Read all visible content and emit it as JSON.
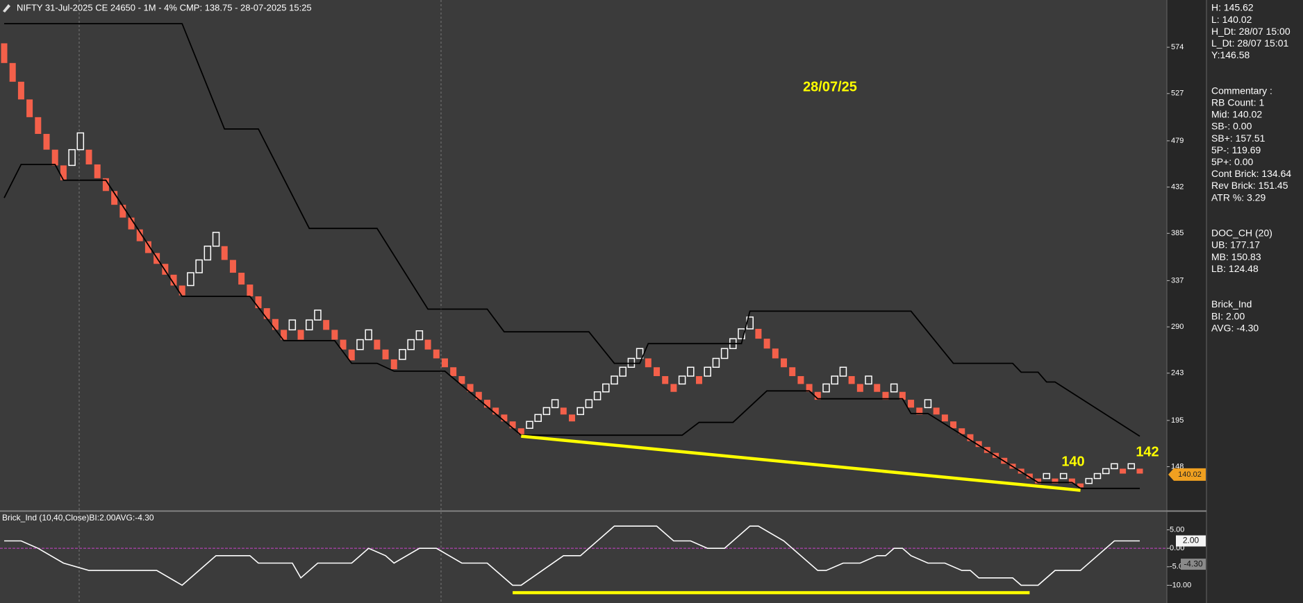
{
  "chart_data": [
    {
      "type": "renko",
      "title": "NIFTY 31-Jul-2025 CE 24650 - 1M - 4% CMP: 138.75 - 28-07-2025 15:25",
      "open": [
        578,
        558,
        539,
        521,
        503,
        486,
        470,
        454,
        454,
        470,
        470,
        455,
        441,
        428,
        414,
        401,
        389,
        377,
        365,
        354,
        343,
        332,
        332,
        345,
        358,
        372,
        372,
        358,
        345,
        333,
        321,
        309,
        298,
        287,
        287,
        287,
        287,
        297,
        297,
        287,
        277,
        267,
        267,
        277,
        277,
        267,
        257,
        257,
        267,
        277,
        277,
        267,
        258,
        249,
        240,
        232,
        224,
        216,
        208,
        201,
        194,
        187,
        187,
        194,
        201,
        208,
        208,
        201,
        201,
        208,
        216,
        224,
        232,
        240,
        249,
        258,
        258,
        249,
        240,
        232,
        232,
        240,
        240,
        240,
        249,
        258,
        268,
        278,
        288,
        288,
        278,
        268,
        258,
        249,
        240,
        232,
        224,
        224,
        232,
        240,
        240,
        232,
        232,
        232,
        224,
        224,
        224,
        216,
        208,
        208,
        208,
        201,
        194,
        187,
        181,
        174,
        168,
        162,
        157,
        151,
        146,
        141,
        136,
        136,
        136,
        136,
        136,
        131,
        131,
        136,
        141,
        146,
        146,
        146,
        146
      ],
      "close": [
        558,
        539,
        521,
        503,
        486,
        470,
        454,
        439,
        470,
        487,
        455,
        441,
        428,
        414,
        401,
        389,
        377,
        365,
        354,
        343,
        332,
        322,
        345,
        358,
        372,
        386,
        358,
        345,
        333,
        321,
        309,
        298,
        287,
        277,
        297,
        277,
        297,
        307,
        287,
        277,
        267,
        256,
        277,
        287,
        267,
        257,
        247,
        267,
        277,
        286,
        267,
        258,
        249,
        240,
        232,
        224,
        216,
        208,
        201,
        194,
        187,
        181,
        194,
        201,
        208,
        216,
        201,
        194,
        208,
        216,
        224,
        232,
        240,
        249,
        258,
        268,
        249,
        240,
        232,
        224,
        240,
        249,
        232,
        249,
        258,
        268,
        278,
        288,
        300,
        278,
        268,
        258,
        249,
        240,
        232,
        224,
        216,
        232,
        240,
        249,
        232,
        224,
        240,
        224,
        216,
        232,
        216,
        208,
        201,
        216,
        201,
        194,
        187,
        181,
        174,
        168,
        162,
        157,
        151,
        146,
        141,
        136,
        131,
        141,
        131,
        141,
        131,
        127,
        136,
        141,
        146,
        151,
        141,
        151,
        141
      ],
      "up_color": "#ffffff",
      "down_color": "#f4604a",
      "overlays": [
        {
          "color": "#000000",
          "x": [
            0,
            21,
            26,
            30,
            36,
            44,
            50,
            57,
            59,
            69,
            72,
            75,
            76,
            87,
            88,
            107,
            112,
            119,
            120,
            122,
            123,
            124,
            134
          ],
          "values": [
            598,
            598,
            491,
            491,
            390,
            390,
            308,
            308,
            285,
            285,
            253,
            253,
            273,
            273,
            306,
            306,
            253,
            253,
            244,
            244,
            234,
            234,
            179
          ]
        },
        {
          "color": "#000000",
          "x": [
            0,
            2,
            6,
            7,
            12,
            21,
            29,
            33,
            39,
            41,
            44,
            46,
            52,
            61,
            80,
            82,
            86,
            90,
            95,
            96,
            106,
            107,
            109,
            122,
            126,
            127,
            134
          ],
          "values": [
            421,
            455,
            455,
            439,
            439,
            321,
            321,
            276,
            276,
            253,
            253,
            245,
            245,
            180,
            180,
            193,
            193,
            225,
            225,
            217,
            217,
            202,
            202,
            132,
            132,
            126,
            126
          ]
        }
      ],
      "trendline": {
        "color": "#ffff00",
        "x": [
          61,
          127
        ],
        "values": [
          179,
          124
        ]
      },
      "annotations": [
        "28/07/25",
        "140",
        "142"
      ],
      "annotation_color": "#ffff00",
      "price_tag": {
        "value": 140.02,
        "label": "140.02"
      },
      "price_tag_color": "#f0a020",
      "ylim": [
        104,
        622
      ],
      "yticks": [
        574,
        527,
        479,
        432,
        385,
        337,
        290,
        243,
        195,
        148
      ],
      "grid": false
    },
    {
      "type": "line",
      "title": "Brick_Ind (10,40,Close)BI:2.00AVG:-4.30",
      "x": [
        0,
        2,
        4,
        7,
        10,
        18,
        21,
        25,
        29,
        30,
        34,
        35,
        37,
        41,
        43,
        45,
        46,
        49,
        51,
        54,
        57,
        60,
        61,
        66,
        68,
        72,
        77,
        79,
        81,
        83,
        85,
        88,
        89,
        92,
        93,
        96,
        97,
        99,
        101,
        103,
        104,
        105,
        106,
        107,
        109,
        111,
        113,
        114,
        115,
        119,
        120,
        122,
        124,
        125,
        127,
        129,
        131,
        134
      ],
      "values": [
        2,
        2,
        0,
        -4,
        -6,
        -6,
        -10,
        -2,
        -2,
        -4,
        -4,
        -8,
        -4,
        -4,
        0,
        -2,
        -4,
        0,
        0,
        -4,
        -4,
        -10,
        -10,
        -2,
        -2,
        6,
        6,
        2,
        2,
        0,
        0,
        6,
        6,
        2,
        0,
        -6,
        -6,
        -4,
        -4,
        -2,
        -2,
        0,
        0,
        -2,
        -4,
        -4,
        -6,
        -6,
        -8,
        -8,
        -10,
        -10,
        -6,
        -6,
        -6,
        -2,
        2,
        2
      ],
      "color": "#ffffff",
      "reference_line": {
        "value": 0,
        "color": "#cc44cc"
      },
      "band_line": {
        "color": "#ffff00",
        "x": [
          60,
          121
        ],
        "values": [
          -12,
          -12
        ]
      },
      "tags": [
        {
          "value": 2,
          "label": "2.00"
        },
        {
          "value": -4.3,
          "label": "-4.30"
        }
      ],
      "ylim": [
        -14.8,
        9.8
      ],
      "yticks": [
        {
          "value": 5,
          "label": "5.00"
        },
        {
          "value": 0,
          "label": "0.00"
        },
        {
          "value": -5,
          "label": "-5.00"
        },
        {
          "value": -10,
          "label": "-10.00"
        }
      ],
      "grid": false
    }
  ],
  "info_panel": [
    [
      "H: 145.62",
      "L: 140.02",
      "H_Dt: 28/07 15:00",
      "L_Dt: 28/07 15:01",
      "Y:146.58"
    ],
    [
      "Commentary :",
      "RB Count: 1",
      "Mid: 140.02",
      "SB-: 0.00",
      "SB+: 157.51",
      "5P-: 119.69",
      "5P+: 0.00",
      "Cont Brick: 134.64",
      "Rev Brick: 151.45",
      "ATR %: 3.29"
    ],
    [
      "DOC_CH (20)",
      "UB: 177.17",
      "MB: 150.83",
      "LB: 124.48"
    ],
    [
      "Brick_Ind",
      "BI: 2.00",
      "AVG: -4.30"
    ]
  ]
}
